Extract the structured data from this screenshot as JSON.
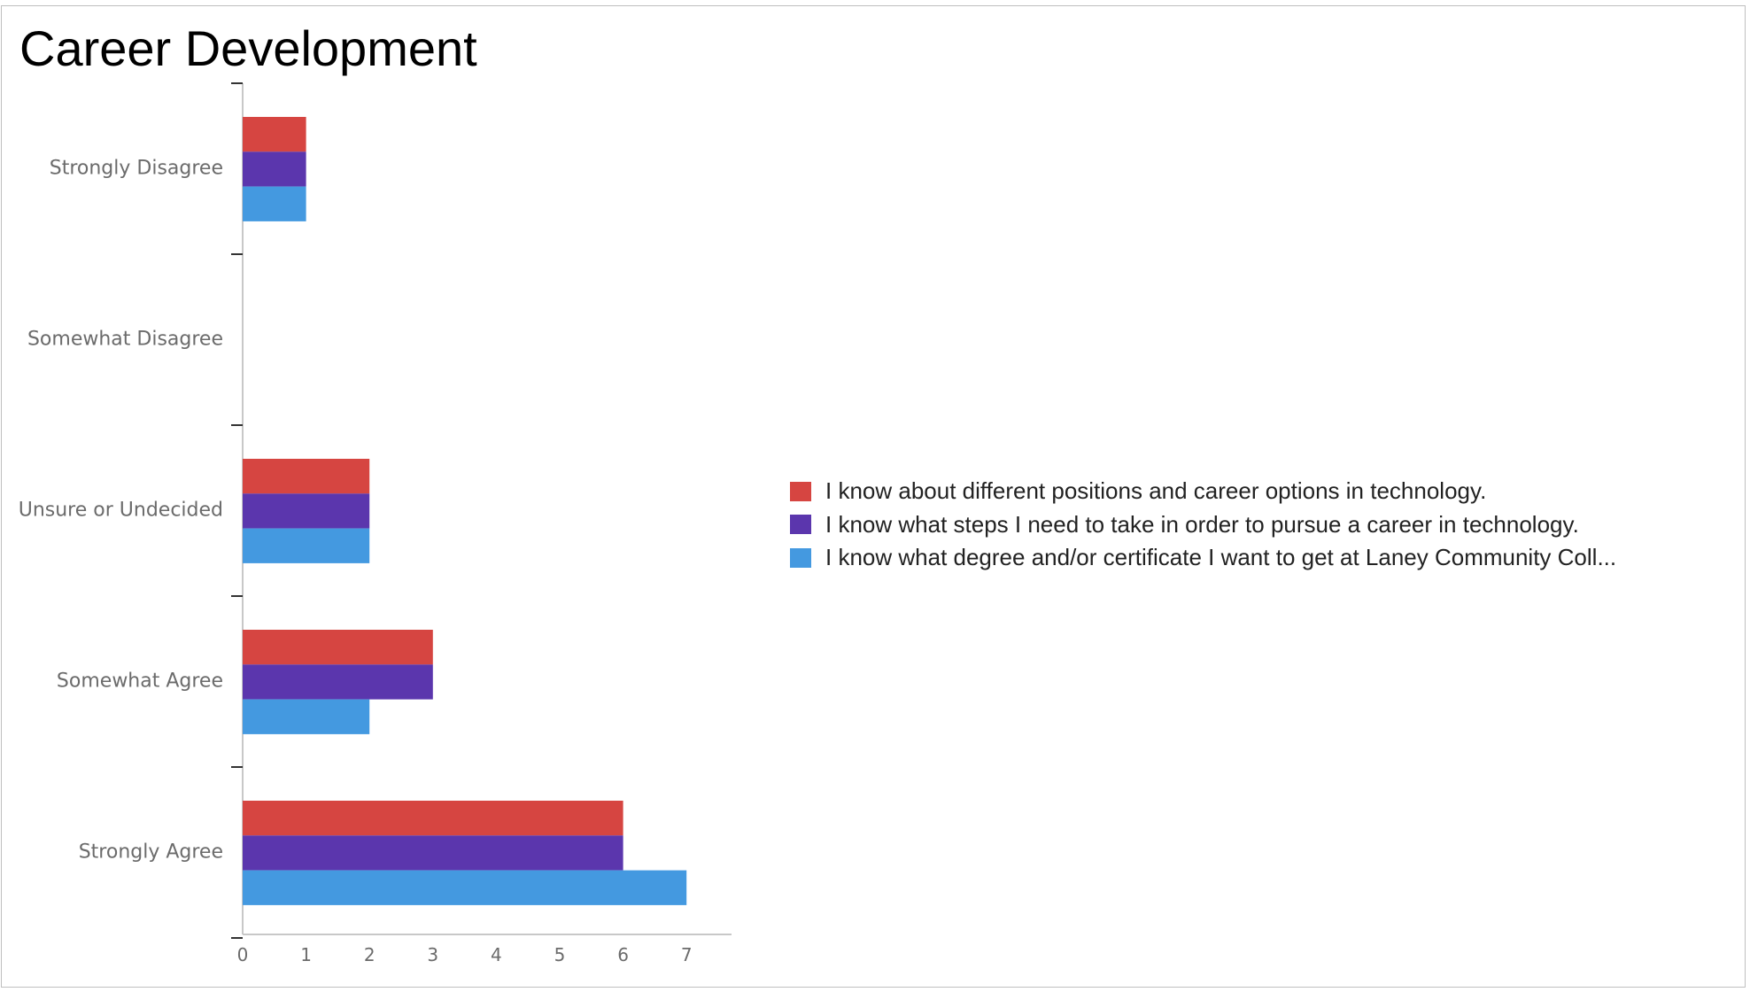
{
  "title": "Career Development",
  "chart_data": {
    "type": "bar",
    "orientation": "horizontal",
    "title": "Career Development",
    "xlabel": "",
    "ylabel": "",
    "xlim": [
      0,
      7.6
    ],
    "x_ticks": [
      "0",
      "1",
      "2",
      "3",
      "4",
      "5",
      "6",
      "7"
    ],
    "grid": false,
    "legend_position": "right",
    "categories": [
      "Strongly Disagree",
      "Somewhat Disagree",
      "Unsure or Undecided",
      "Somewhat Agree",
      "Strongly Agree"
    ],
    "series": [
      {
        "name": "I know about different positions and career options in technology.",
        "color": "#d64541",
        "values": [
          1,
          0,
          2,
          3,
          6
        ]
      },
      {
        "name": "I know what steps I need to take in order to pursue a career in technology.",
        "color": "#5b36ad",
        "values": [
          1,
          0,
          2,
          3,
          6
        ]
      },
      {
        "name": "I know what degree and/or certificate I want to get at Laney Community Coll...",
        "color": "#4499e0",
        "values": [
          1,
          0,
          2,
          2,
          7
        ]
      }
    ]
  }
}
